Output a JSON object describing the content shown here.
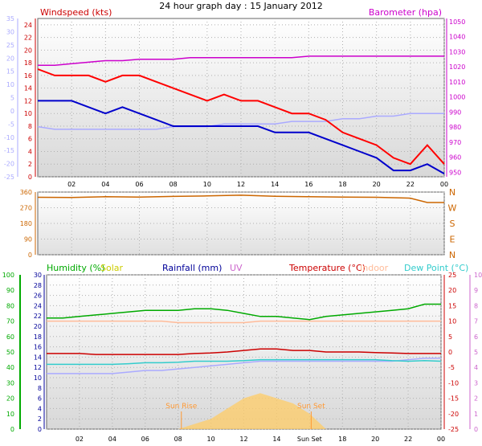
{
  "colors": {
    "wind": "#ff0000",
    "gust_axis": "#aaaaff",
    "avg_wind": "#0000cc",
    "barometer": "#cc00cc",
    "direction": "#cc6600",
    "humidity": "#00aa00",
    "solar": "#cccc00",
    "rainfall": "#000099",
    "uv": "#cc66cc",
    "temperature": "#cc0000",
    "indoor": "#ffbb99",
    "dewpoint": "#33cccc",
    "apparent": "#aaaaff",
    "sun": "#ff9933"
  },
  "chart_data": [
    {
      "type": "line",
      "title": "24 hour graph day : 15 January 2012",
      "left_label": "Windspeed (kts)",
      "right_label": "Barometer (hpa)",
      "x_ticks": [
        "02",
        "04",
        "06",
        "08",
        "10",
        "12",
        "14",
        "16",
        "18",
        "20",
        "22",
        "00"
      ],
      "left_ticks": [
        0,
        2,
        4,
        6,
        8,
        10,
        12,
        14,
        16,
        18,
        20,
        22,
        24
      ],
      "outer_left_ticks": [
        -25,
        -20,
        -15,
        -10,
        -5,
        0,
        5,
        10,
        15,
        20,
        25,
        30,
        35
      ],
      "right_ticks": [
        950,
        960,
        970,
        980,
        990,
        1000,
        1010,
        1020,
        1030,
        1040,
        1050
      ],
      "ylim": [
        0,
        25
      ],
      "right_ylim": [
        947,
        1052
      ],
      "x": [
        0,
        1,
        2,
        3,
        4,
        5,
        6,
        7,
        8,
        9,
        10,
        11,
        12,
        13,
        14,
        15,
        16,
        17,
        18,
        19,
        20,
        21,
        22,
        23,
        24
      ],
      "series": [
        {
          "key": "wind_gust",
          "values": [
            17,
            16,
            16,
            16,
            15,
            16,
            16,
            15,
            14,
            13,
            12,
            13,
            12,
            12,
            11,
            10,
            10,
            9,
            7,
            6,
            5,
            3,
            2,
            5,
            2
          ]
        },
        {
          "key": "wind_avg",
          "values": [
            12,
            12,
            12,
            11,
            10,
            11,
            10,
            9,
            8,
            8,
            8,
            8,
            8,
            8,
            7,
            7,
            7,
            6,
            5,
            4,
            3,
            1,
            1,
            2,
            0.5
          ]
        },
        {
          "key": "barometer",
          "values": [
            1021,
            1021,
            1022,
            1023,
            1024,
            1024,
            1025,
            1025,
            1025,
            1026,
            1026,
            1026,
            1026,
            1026,
            1026,
            1026,
            1027,
            1027,
            1027,
            1027,
            1027,
            1027,
            1027,
            1027,
            1027
          ]
        },
        {
          "key": "gust_outer",
          "values": [
            -6,
            -7,
            -7,
            -7,
            -7,
            -7,
            -7,
            -7,
            -6,
            -6,
            -6,
            -5,
            -5,
            -5,
            -5,
            -4,
            -4,
            -4,
            -3,
            -3,
            -2,
            -2,
            -1,
            -1,
            -1
          ]
        }
      ]
    },
    {
      "type": "line",
      "left_ticks": [
        0,
        90,
        180,
        270,
        360
      ],
      "right_ticks": [
        "N",
        "E",
        "S",
        "W",
        "N"
      ],
      "ylim": [
        0,
        360
      ],
      "x": [
        0,
        2,
        4,
        6,
        8,
        10,
        12,
        14,
        16,
        18,
        20,
        22,
        23,
        24
      ],
      "series": [
        {
          "key": "wind_direction",
          "values": [
            330,
            329,
            333,
            331,
            335,
            338,
            342,
            336,
            333,
            331,
            330,
            325,
            300,
            300
          ]
        }
      ]
    },
    {
      "type": "line",
      "legend": [
        "Humidity (%)",
        "Solar",
        "Rainfall (mm)",
        "UV",
        "Temperature (°C)",
        "Indoor",
        "Dew Point (°C)"
      ],
      "x_ticks": [
        "02",
        "04",
        "06",
        "08",
        "10",
        "12",
        "14",
        "Sun Set",
        "18",
        "20",
        "22",
        "00"
      ],
      "humidity_ticks": [
        0,
        10,
        20,
        30,
        40,
        50,
        60,
        70,
        80,
        90,
        100
      ],
      "rain_ticks": [
        0,
        2,
        4,
        6,
        8,
        10,
        12,
        14,
        16,
        18,
        20,
        22,
        24,
        26,
        28,
        30
      ],
      "temp_ticks": [
        -25,
        -20,
        -15,
        -10,
        -5,
        0,
        5,
        10,
        15,
        20,
        25
      ],
      "uv_ticks": [
        0,
        1,
        2,
        3,
        4,
        5,
        6,
        7,
        8,
        9,
        10
      ],
      "annotations": [
        "Sun Rise",
        "Sun Set"
      ],
      "sunrise_hour": 8.2,
      "sunset_hour": 16.1,
      "x": [
        0,
        1,
        2,
        3,
        4,
        5,
        6,
        7,
        8,
        9,
        10,
        11,
        12,
        13,
        14,
        15,
        16,
        17,
        18,
        19,
        20,
        21,
        22,
        23,
        24
      ],
      "series": [
        {
          "key": "humidity",
          "values": [
            72,
            72,
            73,
            74,
            75,
            76,
            77,
            77,
            77,
            78,
            78,
            77,
            75,
            73,
            73,
            72,
            71,
            73,
            74,
            75,
            76,
            77,
            78,
            81,
            81
          ]
        },
        {
          "key": "indoor_temp",
          "values": [
            10,
            10,
            10,
            10,
            10,
            10,
            10,
            10,
            9.5,
            9.5,
            9.5,
            9.5,
            9.5,
            10,
            10,
            10,
            10,
            10,
            10,
            10,
            10,
            10,
            10,
            10,
            10
          ]
        },
        {
          "key": "temperature",
          "values": [
            -0.5,
            -0.5,
            -0.5,
            -0.8,
            -0.8,
            -0.8,
            -0.8,
            -0.8,
            -0.8,
            -0.5,
            -0.3,
            0,
            0.5,
            1,
            1,
            0.5,
            0.5,
            0,
            0,
            0,
            -0.2,
            -0.3,
            -0.5,
            -0.5,
            -0.5
          ]
        },
        {
          "key": "dew_point",
          "values": [
            -4,
            -4,
            -4,
            -4,
            -4,
            -3.8,
            -3.5,
            -3.5,
            -3.3,
            -3,
            -3,
            -3,
            -2.8,
            -2.5,
            -2.5,
            -2.5,
            -2.5,
            -2.5,
            -2.5,
            -2.5,
            -2.5,
            -2.8,
            -3,
            -2.8,
            -3
          ]
        },
        {
          "key": "apparent",
          "values": [
            -7,
            -7,
            -7,
            -7,
            -7,
            -6.5,
            -6,
            -6,
            -5.5,
            -5,
            -4.5,
            -4,
            -3.5,
            -3,
            -3,
            -3,
            -3,
            -3,
            -3,
            -3,
            -3,
            -3,
            -2.5,
            -2,
            -2
          ]
        },
        {
          "key": "solar",
          "values": [
            0,
            0,
            0,
            0,
            0,
            0,
            0,
            0,
            0,
            1,
            2,
            4,
            6,
            7,
            6,
            5,
            3,
            0,
            0,
            0,
            0,
            0,
            0,
            0,
            0
          ]
        }
      ]
    }
  ]
}
